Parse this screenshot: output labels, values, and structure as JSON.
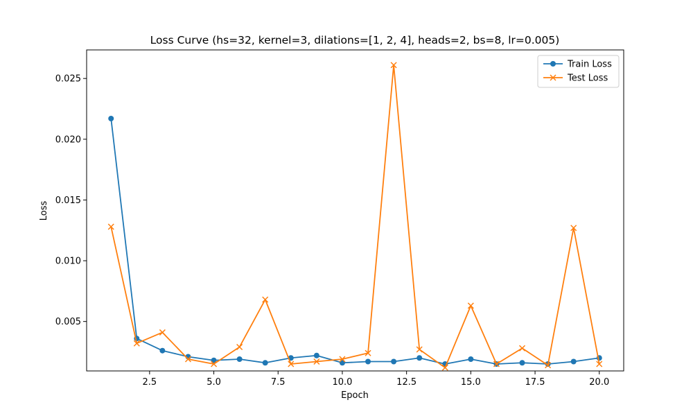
{
  "chart_data": {
    "type": "line",
    "title": "Loss Curve (hs=32, kernel=3, dilations=[1, 2, 4], heads=2, bs=8, lr=0.005)",
    "xlabel": "Epoch",
    "ylabel": "Loss",
    "xlim": [
      0.05,
      20.95
    ],
    "ylim": [
      0.00093,
      0.02735
    ],
    "xticks": [
      2.5,
      5.0,
      7.5,
      10.0,
      12.5,
      15.0,
      17.5,
      20.0
    ],
    "xtick_labels": [
      "2.5",
      "5.0",
      "7.5",
      "10.0",
      "12.5",
      "15.0",
      "17.5",
      "20.0"
    ],
    "yticks": [
      0.005,
      0.01,
      0.015,
      0.02,
      0.025
    ],
    "ytick_labels": [
      "0.005",
      "0.010",
      "0.015",
      "0.020",
      "0.025"
    ],
    "grid": false,
    "legend_position": "top-right",
    "x": [
      1,
      2,
      3,
      4,
      5,
      6,
      7,
      8,
      9,
      10,
      11,
      12,
      13,
      14,
      15,
      16,
      17,
      18,
      19,
      20
    ],
    "series": [
      {
        "name": "Train Loss",
        "color": "#1f77b4",
        "marker": "circle",
        "values": [
          0.0217,
          0.0036,
          0.0026,
          0.0021,
          0.0018,
          0.0019,
          0.0016,
          0.002,
          0.0022,
          0.0016,
          0.0017,
          0.0017,
          0.002,
          0.0015,
          0.0019,
          0.0015,
          0.0016,
          0.0015,
          0.0017,
          0.002
        ]
      },
      {
        "name": "Test Loss",
        "color": "#ff7f0e",
        "marker": "x",
        "values": [
          0.0128,
          0.0032,
          0.0041,
          0.0019,
          0.0015,
          0.0029,
          0.0068,
          0.0015,
          0.0017,
          0.0019,
          0.0024,
          0.0261,
          0.0027,
          0.0012,
          0.0063,
          0.0015,
          0.0028,
          0.0014,
          0.0127,
          0.0015
        ]
      }
    ]
  }
}
